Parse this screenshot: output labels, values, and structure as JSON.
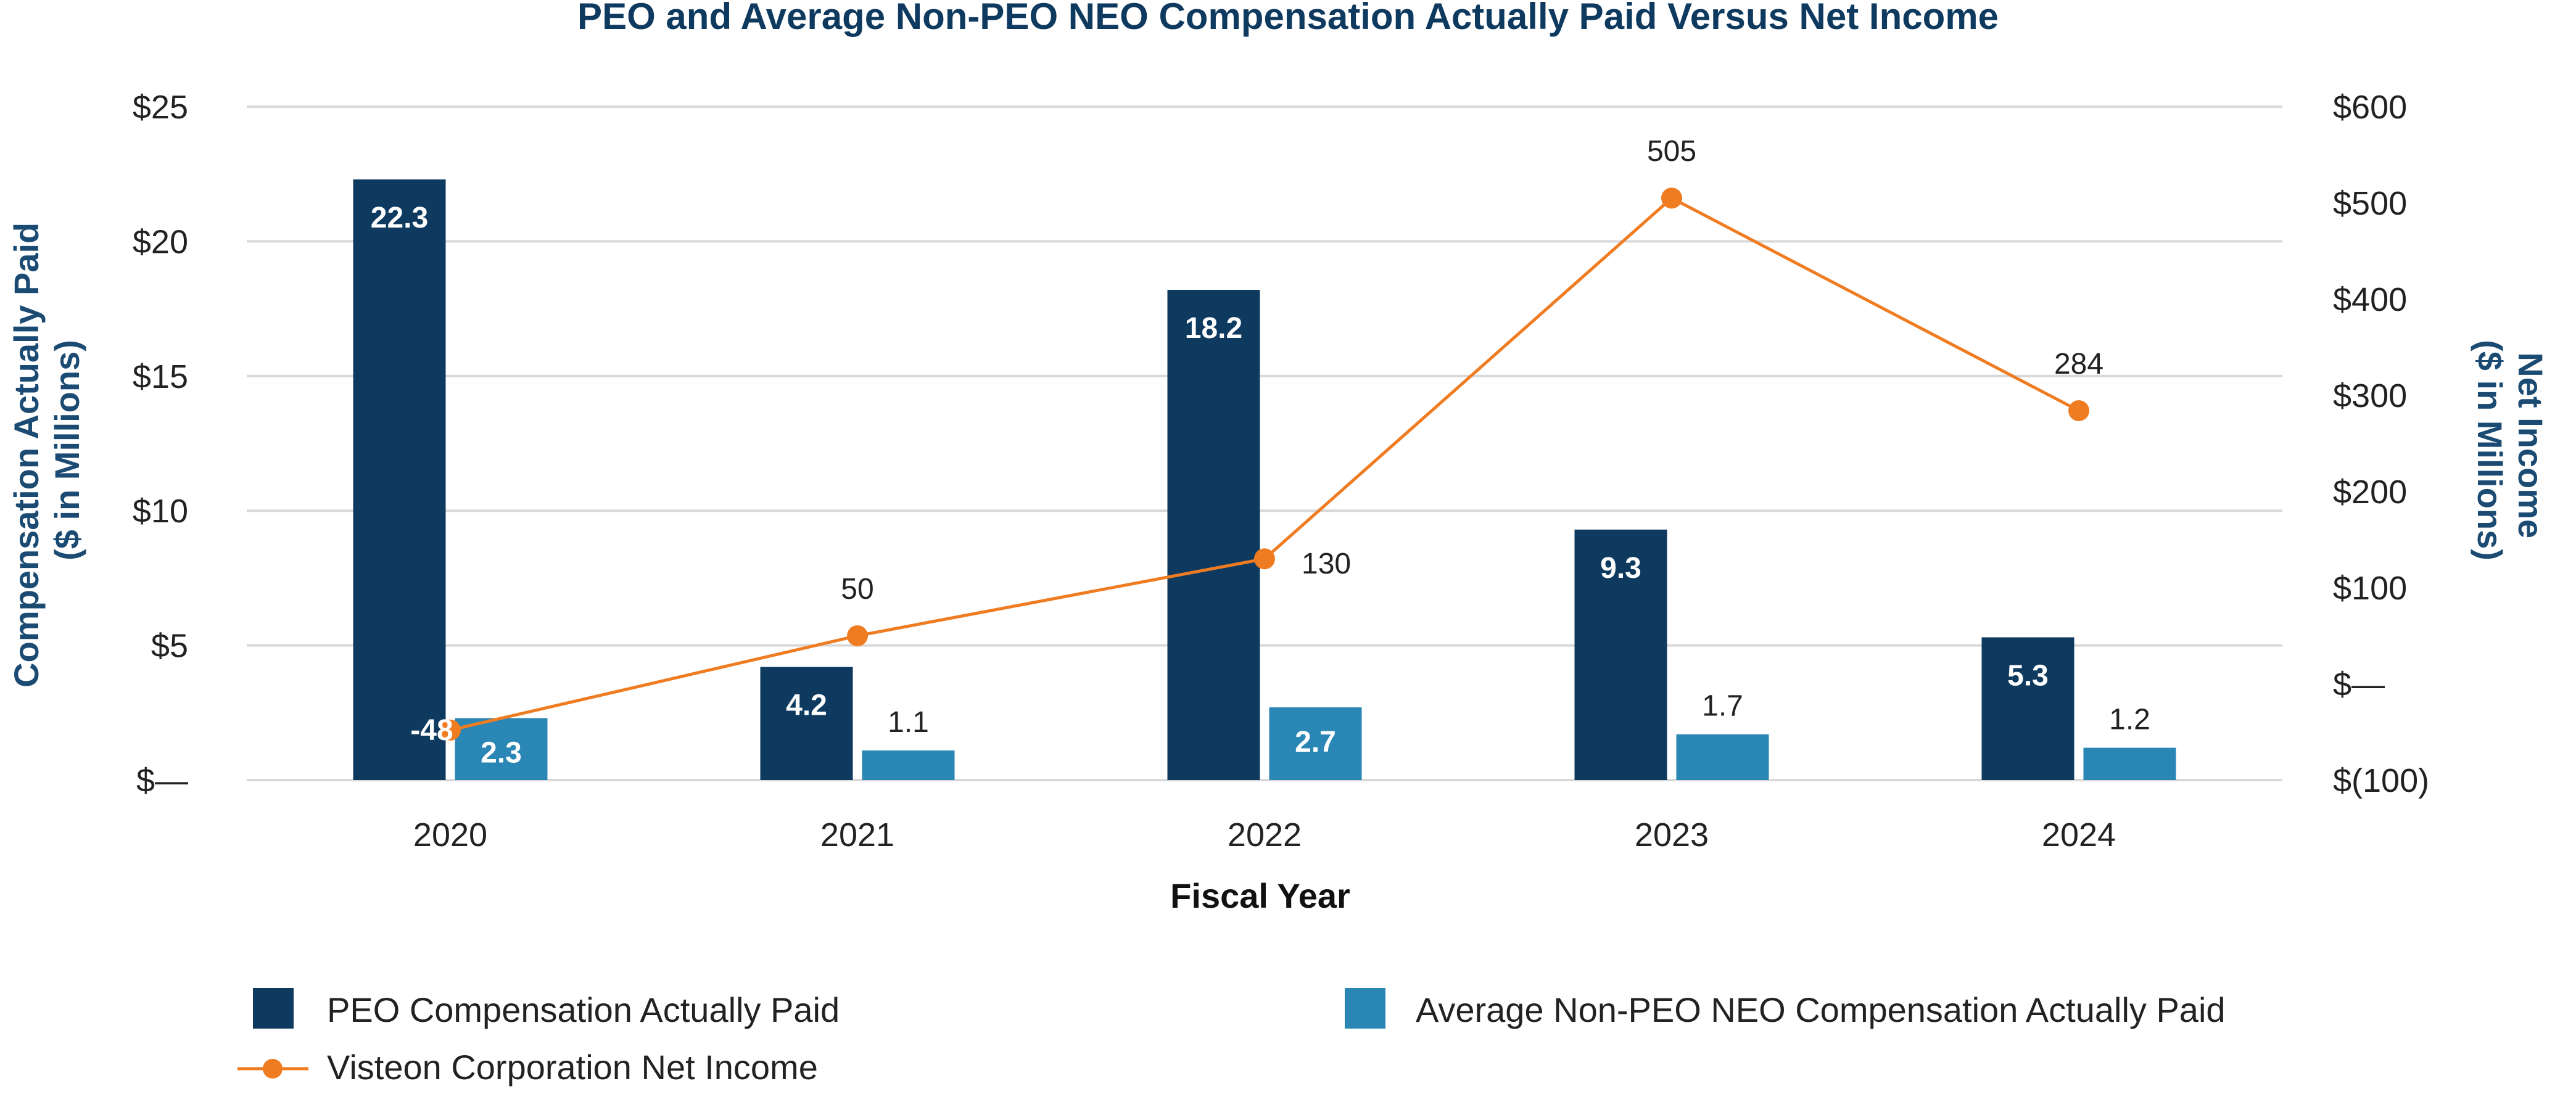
{
  "chart_data": {
    "type": "bar",
    "title": "PEO and Average Non-PEO NEO Compensation Actually Paid Versus Net Income",
    "xlabel": "Fiscal Year",
    "ylabel_left_lines": [
      "Compensation Actually Paid",
      "($ in Millions)"
    ],
    "ylabel_right_lines": [
      "Net Income",
      "($ in Millions)"
    ],
    "categories": [
      "2020",
      "2021",
      "2022",
      "2023",
      "2024"
    ],
    "ylim_left": [
      0,
      25
    ],
    "ylim_right": [
      -100,
      600
    ],
    "yticks_left": [
      {
        "value": 0,
        "label": "$—"
      },
      {
        "value": 5,
        "label": "$5"
      },
      {
        "value": 10,
        "label": "$10"
      },
      {
        "value": 15,
        "label": "$15"
      },
      {
        "value": 20,
        "label": "$20"
      },
      {
        "value": 25,
        "label": "$25"
      }
    ],
    "yticks_right": [
      {
        "value": -100,
        "label": "$(100)"
      },
      {
        "value": 0,
        "label": "$—"
      },
      {
        "value": 100,
        "label": "$100"
      },
      {
        "value": 200,
        "label": "$200"
      },
      {
        "value": 300,
        "label": "$300"
      },
      {
        "value": 400,
        "label": "$400"
      },
      {
        "value": 500,
        "label": "$500"
      },
      {
        "value": 600,
        "label": "$600"
      }
    ],
    "series": [
      {
        "name": "PEO Compensation Actually Paid",
        "kind": "bar",
        "axis": "left",
        "color": "#0f3a5f",
        "values": [
          22.3,
          4.2,
          18.2,
          9.3,
          5.3
        ],
        "labels": [
          "22.3",
          "4.2",
          "18.2",
          "9.3",
          "5.3"
        ]
      },
      {
        "name": "Average Non-PEO NEO Compensation Actually Paid",
        "kind": "bar",
        "axis": "left",
        "color": "#2a86b4",
        "values": [
          2.3,
          1.1,
          2.7,
          1.7,
          1.2
        ],
        "labels": [
          "2.3",
          "1.1",
          "2.7",
          "1.7",
          "1.2"
        ]
      },
      {
        "name": "Visteon Corporation Net Income",
        "kind": "line",
        "axis": "right",
        "color": "#f07c22",
        "values": [
          -48,
          50,
          130,
          505,
          284
        ],
        "labels": [
          "-48",
          "50",
          "130",
          "505",
          "284"
        ]
      }
    ],
    "legend": "bottom",
    "grid": true
  }
}
